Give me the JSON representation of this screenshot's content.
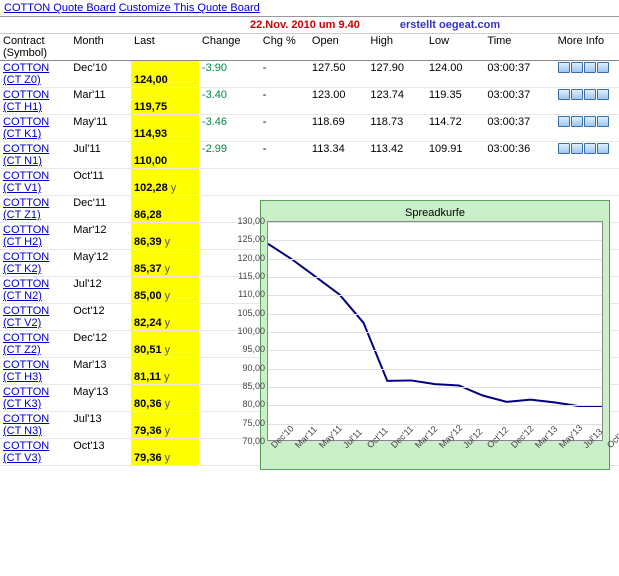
{
  "header": {
    "title_link": "COTTON Quote Board",
    "customize_link": "Customize This Quote Board"
  },
  "dateline": {
    "date": "22.Nov. 2010 um 9.40",
    "source": "erstellt oegeat.com"
  },
  "columns": {
    "symbol": "Contract (Symbol)",
    "month": "Month",
    "last": "Last",
    "change": "Change",
    "chgp": "Chg %",
    "open": "Open",
    "high": "High",
    "low": "Low",
    "time": "Time",
    "info": "More Info"
  },
  "rows": [
    {
      "sym1": "COTTON",
      "sym2": "(CT Z0)",
      "month": "Dec'10",
      "last": "124,00",
      "suf": "",
      "change": "-3.90",
      "chgp": "-",
      "open": "127.50",
      "high": "127.90",
      "low": "124.00",
      "time": "03:00:37",
      "icons": true
    },
    {
      "sym1": "COTTON",
      "sym2": "(CT H1)",
      "month": "Mar'11",
      "last": "119,75",
      "suf": "",
      "change": "-3.40",
      "chgp": "-",
      "open": "123.00",
      "high": "123.74",
      "low": "119.35",
      "time": "03:00:37",
      "icons": true
    },
    {
      "sym1": "COTTON",
      "sym2": "(CT K1)",
      "month": "May'11",
      "last": "114,93",
      "suf": "",
      "change": "-3.46",
      "chgp": "-",
      "open": "118.69",
      "high": "118.73",
      "low": "114.72",
      "time": "03:00:37",
      "icons": true
    },
    {
      "sym1": "COTTON",
      "sym2": "(CT N1)",
      "month": "Jul'11",
      "last": "110,00",
      "suf": "",
      "change": "-2.99",
      "chgp": "-",
      "open": "113.34",
      "high": "113.42",
      "low": "109.91",
      "time": "03:00:36",
      "icons": true
    },
    {
      "sym1": "COTTON",
      "sym2": "(CT V1)",
      "month": "Oct'11",
      "last": "102,28",
      "suf": "y"
    },
    {
      "sym1": "COTTON",
      "sym2": "(CT Z1)",
      "month": "Dec'11",
      "last": "86,28",
      "suf": ""
    },
    {
      "sym1": "COTTON",
      "sym2": "(CT H2)",
      "month": "Mar'12",
      "last": "86,39",
      "suf": "y"
    },
    {
      "sym1": "COTTON",
      "sym2": "(CT K2)",
      "month": "May'12",
      "last": "85,37",
      "suf": "y"
    },
    {
      "sym1": "COTTON",
      "sym2": "(CT N2)",
      "month": "Jul'12",
      "last": "85,00",
      "suf": "y"
    },
    {
      "sym1": "COTTON",
      "sym2": "(CT V2)",
      "month": "Oct'12",
      "last": "82,24",
      "suf": "y"
    },
    {
      "sym1": "COTTON",
      "sym2": "(CT Z2)",
      "month": "Dec'12",
      "last": "80,51",
      "suf": "y"
    },
    {
      "sym1": "COTTON",
      "sym2": "(CT H3)",
      "month": "Mar'13",
      "last": "81,11",
      "suf": "y"
    },
    {
      "sym1": "COTTON",
      "sym2": "(CT K3)",
      "month": "May'13",
      "last": "80,36",
      "suf": "y"
    },
    {
      "sym1": "COTTON",
      "sym2": "(CT N3)",
      "month": "Jul'13",
      "last": "79,36",
      "suf": "y"
    },
    {
      "sym1": "COTTON",
      "sym2": "(CT V3)",
      "month": "Oct'13",
      "last": "79,36",
      "suf": "y"
    }
  ],
  "chart": {
    "title": "Spreadkurfe",
    "background": "#c9f0c9",
    "plot_bg": "#ffffff",
    "grid_color": "#e0e0e0",
    "line_color": "#000080",
    "line_width": 2,
    "y_min": 70,
    "y_max": 130,
    "y_step": 5,
    "x_labels": [
      "Dec'10",
      "Mar'11",
      "May'11",
      "Jul'11",
      "Oct'11",
      "Dec'11",
      "Mar'12",
      "May'12",
      "Jul'12",
      "Oct'12",
      "Dec'12",
      "Mar'13",
      "May'13",
      "Jul'13",
      "Oct'13"
    ],
    "y_values": [
      124.0,
      119.75,
      114.93,
      110.0,
      102.28,
      86.28,
      86.39,
      85.37,
      85.0,
      82.24,
      80.51,
      81.11,
      80.36,
      79.36,
      79.36
    ]
  }
}
